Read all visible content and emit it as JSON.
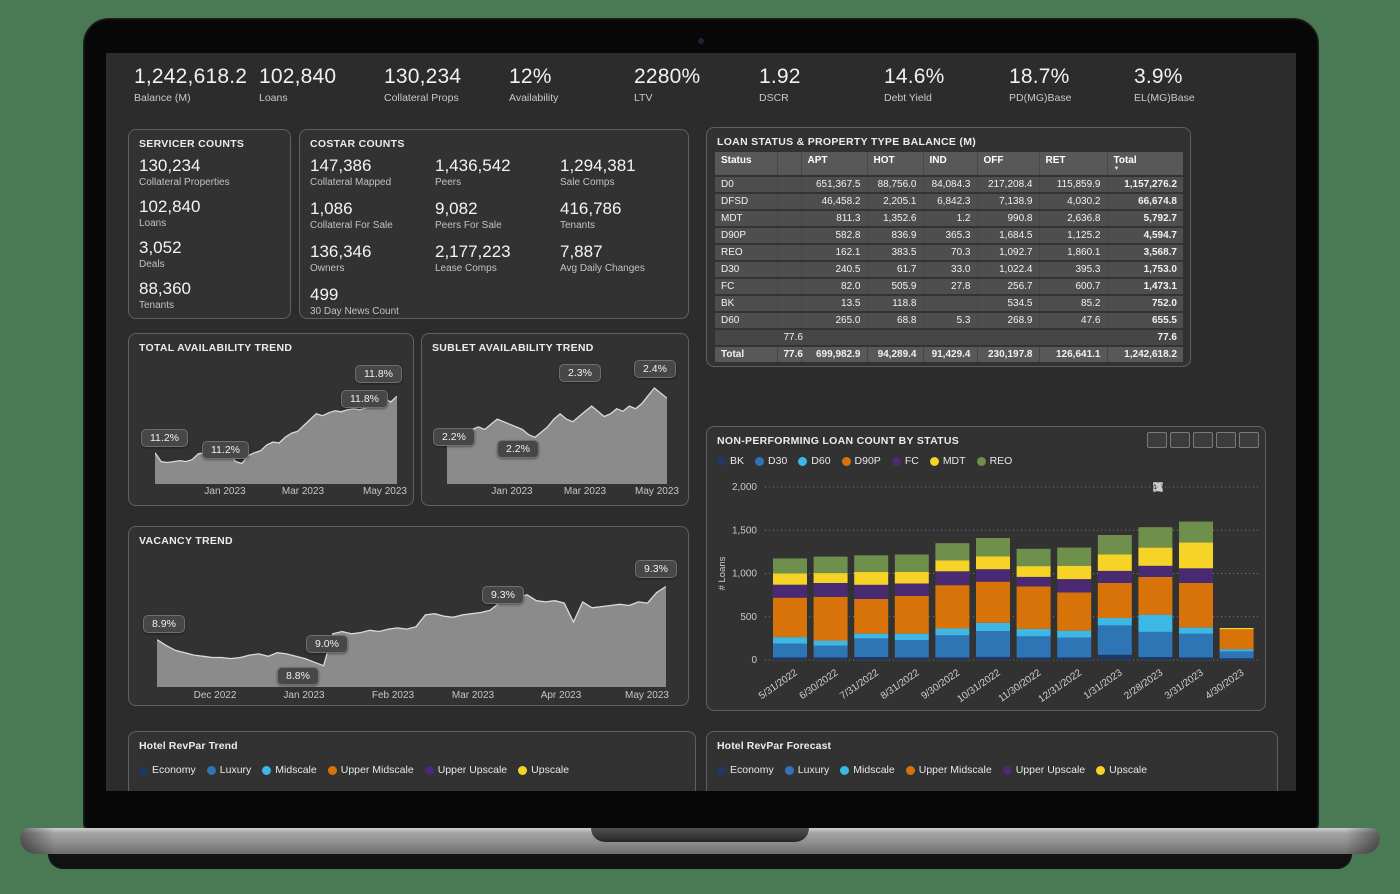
{
  "kpis": [
    {
      "value": "1,242,618.2",
      "label": "Balance (M)"
    },
    {
      "value": "102,840",
      "label": "Loans"
    },
    {
      "value": "130,234",
      "label": "Collateral Props"
    },
    {
      "value": "12%",
      "label": "Availability"
    },
    {
      "value": "2280%",
      "label": "LTV"
    },
    {
      "value": "1.92",
      "label": "DSCR"
    },
    {
      "value": "14.6%",
      "label": "Debt Yield"
    },
    {
      "value": "18.7%",
      "label": "PD(MG)Base"
    },
    {
      "value": "3.9%",
      "label": "EL(MG)Base"
    }
  ],
  "servicer": {
    "title": "SERVICER COUNTS",
    "items": [
      {
        "value": "130,234",
        "label": "Collateral Properties"
      },
      {
        "value": "102,840",
        "label": "Loans"
      },
      {
        "value": "3,052",
        "label": "Deals"
      },
      {
        "value": "88,360",
        "label": "Tenants"
      }
    ]
  },
  "costar": {
    "title": "COSTAR COUNTS",
    "items": [
      {
        "value": "147,386",
        "label": "Collateral Mapped"
      },
      {
        "value": "1,436,542",
        "label": "Peers"
      },
      {
        "value": "1,294,381",
        "label": "Sale Comps"
      },
      {
        "value": "1,086",
        "label": "Collateral For Sale"
      },
      {
        "value": "9,082",
        "label": "Peers For Sale"
      },
      {
        "value": "416,786",
        "label": "Tenants"
      },
      {
        "value": "136,346",
        "label": "Owners"
      },
      {
        "value": "2,177,223",
        "label": "Lease Comps"
      },
      {
        "value": "7,887",
        "label": "Avg Daily Changes"
      },
      {
        "value": "499",
        "label": "30 Day News Count"
      }
    ]
  },
  "loan_table": {
    "title": "LOAN STATUS & PROPERTY TYPE BALANCE (M)",
    "columns": [
      "Status",
      "",
      "APT",
      "HOT",
      "IND",
      "OFF",
      "RET",
      "Total"
    ],
    "sort_glyph": "▼",
    "rows": [
      [
        "D0",
        "",
        "651,367.5",
        "88,756.0",
        "84,084.3",
        "217,208.4",
        "115,859.9",
        "1,157,276.2"
      ],
      [
        "DFSD",
        "",
        "46,458.2",
        "2,205.1",
        "6,842.3",
        "7,138.9",
        "4,030.2",
        "66,674.8"
      ],
      [
        "MDT",
        "",
        "811.3",
        "1,352.6",
        "1.2",
        "990.8",
        "2,636.8",
        "5,792.7"
      ],
      [
        "D90P",
        "",
        "582.8",
        "836.9",
        "365.3",
        "1,684.5",
        "1,125.2",
        "4,594.7"
      ],
      [
        "REO",
        "",
        "162.1",
        "383.5",
        "70.3",
        "1,092.7",
        "1,860.1",
        "3,568.7"
      ],
      [
        "D30",
        "",
        "240.5",
        "61.7",
        "33.0",
        "1,022.4",
        "395.3",
        "1,753.0"
      ],
      [
        "FC",
        "",
        "82.0",
        "505.9",
        "27.8",
        "256.7",
        "600.7",
        "1,473.1"
      ],
      [
        "BK",
        "",
        "13.5",
        "118.8",
        "",
        "534.5",
        "85.2",
        "752.0"
      ],
      [
        "D60",
        "",
        "265.0",
        "68.8",
        "5.3",
        "268.9",
        "47.6",
        "655.5"
      ],
      [
        "",
        "77.6",
        "",
        "",
        "",
        "",
        "",
        "77.6"
      ]
    ],
    "total_row": [
      "Total",
      "77.6",
      "699,982.9",
      "94,289.4",
      "91,429.4",
      "230,197.8",
      "126,641.1",
      "1,242,618.2"
    ]
  },
  "chart_data": [
    {
      "id": "total_availability",
      "type": "area",
      "title": "TOTAL AVAILABILITY TREND",
      "x_ticks": [
        "Jan 2023",
        "Mar 2023",
        "May 2023"
      ],
      "callouts": [
        "11.2%",
        "11.2%",
        "11.8%",
        "11.8%"
      ],
      "ylim": [
        10.9,
        12.15
      ],
      "unit": "percent",
      "grid": false,
      "values": [
        11.22,
        11.13,
        11.12,
        11.13,
        11.14,
        11.13,
        11.15,
        11.21,
        11.22,
        11.23,
        11.23,
        11.22,
        11.21,
        11.13,
        11.11,
        11.19,
        11.22,
        11.24,
        11.3,
        11.33,
        11.32,
        11.38,
        11.42,
        11.44,
        11.5,
        11.56,
        11.62,
        11.6,
        11.63,
        11.65,
        11.64,
        11.66,
        11.67,
        11.66,
        11.68,
        11.7,
        11.72,
        11.78,
        11.74,
        11.8
      ]
    },
    {
      "id": "sublet_availability",
      "type": "area",
      "title": "SUBLET AVAILABILITY TREND",
      "x_ticks": [
        "Jan 2023",
        "Mar 2023",
        "May 2023"
      ],
      "callouts": [
        "2.2%",
        "2.2%",
        "2.3%",
        "2.4%"
      ],
      "ylim": [
        2.05,
        2.52
      ],
      "unit": "percent",
      "grid": false,
      "values": [
        2.2,
        2.23,
        2.25,
        2.24,
        2.26,
        2.27,
        2.26,
        2.28,
        2.3,
        2.29,
        2.28,
        2.27,
        2.26,
        2.24,
        2.23,
        2.25,
        2.27,
        2.3,
        2.32,
        2.3,
        2.29,
        2.31,
        2.33,
        2.35,
        2.33,
        2.31,
        2.32,
        2.34,
        2.33,
        2.35,
        2.34,
        2.36,
        2.39,
        2.42,
        2.4,
        2.38
      ]
    },
    {
      "id": "vacancy",
      "type": "area",
      "title": "VACANCY TREND",
      "x_ticks": [
        "Dec 2022",
        "Jan 2023",
        "Feb 2023",
        "Mar 2023",
        "Apr 2023",
        "May 2023"
      ],
      "callouts": [
        "8.9%",
        "8.8%",
        "9.0%",
        "9.3%",
        "9.3%"
      ],
      "ylim": [
        8.55,
        9.65
      ],
      "unit": "percent",
      "grid": false,
      "values": [
        8.95,
        8.9,
        8.86,
        8.84,
        8.82,
        8.81,
        8.8,
        8.8,
        8.79,
        8.8,
        8.82,
        8.83,
        8.81,
        8.84,
        8.83,
        8.81,
        8.79,
        8.76,
        8.73,
        9.0,
        9.02,
        9.0,
        9.01,
        9.03,
        9.02,
        9.04,
        9.05,
        9.04,
        9.06,
        9.16,
        9.17,
        9.15,
        9.14,
        9.16,
        9.17,
        9.18,
        9.2,
        9.26,
        9.29,
        9.31,
        9.33,
        9.28,
        9.27,
        9.28,
        9.26,
        9.1,
        9.27,
        9.22,
        9.23,
        9.24,
        9.25,
        9.24,
        9.27,
        9.26,
        9.35,
        9.4
      ]
    },
    {
      "id": "npl_by_status",
      "type": "bar",
      "stacked": true,
      "title": "NON-PERFORMING LOAN COUNT BY STATUS",
      "ylabel": "# Loans",
      "ylim": [
        0,
        2000
      ],
      "y_ticks": [
        0,
        500,
        1000,
        1500,
        2000
      ],
      "y_tick_labels": [
        "0",
        "500",
        "1,000",
        "1,500",
        "2,000"
      ],
      "legend_position": "top",
      "grid": "dotted",
      "categories": [
        "5/31/2022",
        "6/30/2022",
        "7/31/2022",
        "8/31/2022",
        "9/30/2022",
        "10/31/2022",
        "11/30/2022",
        "12/31/2022",
        "1/31/2023",
        "2/28/2023",
        "3/31/2023",
        "4/30/2023"
      ],
      "series": [
        {
          "name": "BK",
          "color": "#1f3864",
          "values": [
            30,
            30,
            35,
            30,
            30,
            35,
            30,
            30,
            60,
            35,
            30,
            20
          ]
        },
        {
          "name": "D30",
          "color": "#2e75b6",
          "values": [
            160,
            135,
            215,
            200,
            255,
            300,
            245,
            230,
            340,
            290,
            275,
            80
          ]
        },
        {
          "name": "D60",
          "color": "#3db7e4",
          "values": [
            75,
            60,
            55,
            75,
            80,
            95,
            85,
            80,
            85,
            200,
            70,
            25
          ]
        },
        {
          "name": "D90P",
          "color": "#d8730a",
          "values": [
            455,
            505,
            400,
            435,
            500,
            475,
            490,
            440,
            405,
            435,
            515,
            230
          ]
        },
        {
          "name": "FC",
          "color": "#4b2a74",
          "values": [
            150,
            160,
            165,
            145,
            160,
            145,
            110,
            155,
            140,
            130,
            170,
            0
          ]
        },
        {
          "name": "MDT",
          "color": "#f5d327",
          "values": [
            130,
            115,
            150,
            135,
            125,
            150,
            125,
            155,
            190,
            210,
            300,
            15
          ]
        },
        {
          "name": "REO",
          "color": "#6f8f4c",
          "values": [
            175,
            190,
            190,
            200,
            200,
            210,
            200,
            210,
            225,
            235,
            240,
            0
          ]
        }
      ]
    }
  ],
  "npl_icons": [
    "pin",
    "filter",
    "copy",
    "focus-mode",
    "more-options"
  ],
  "hotel_trend": {
    "title": "Hotel RevPar Trend",
    "legend": [
      {
        "label": "Economy",
        "color": "#1f3864"
      },
      {
        "label": "Luxury",
        "color": "#2e75b6"
      },
      {
        "label": "Midscale",
        "color": "#3db7e4"
      },
      {
        "label": "Upper Midscale",
        "color": "#d8730a"
      },
      {
        "label": "Upper Upscale",
        "color": "#4b2a74"
      },
      {
        "label": "Upscale",
        "color": "#f5d327"
      }
    ]
  },
  "hotel_forecast": {
    "title": "Hotel RevPar Forecast",
    "legend": [
      {
        "label": "Economy",
        "color": "#1f3864"
      },
      {
        "label": "Luxury",
        "color": "#2e75b6"
      },
      {
        "label": "Midscale",
        "color": "#3db7e4"
      },
      {
        "label": "Upper Midscale",
        "color": "#d8730a"
      },
      {
        "label": "Upper Upscale",
        "color": "#4b2a74"
      },
      {
        "label": "Upscale",
        "color": "#f5d327"
      }
    ]
  }
}
